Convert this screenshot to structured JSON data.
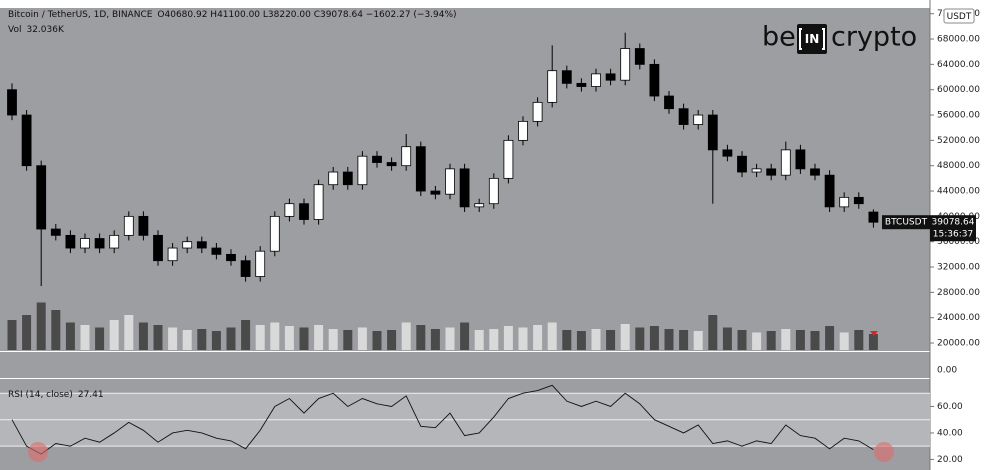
{
  "chart_data": [
    {
      "type": "candlestick",
      "title": "Bitcoin / TetherUS, 1D, BINANCE",
      "ohlc_text": "O40680.92 H41100.00 L38220.00 C39078.64 −1602.27 (−3.94%)",
      "symbol": "BTCUSDT",
      "countdown": "15:36:37",
      "currency": "USDT",
      "watermark": [
        "be",
        "IN",
        "crypto"
      ],
      "up_color": "#ffffff",
      "down_color": "#000000",
      "open": [
        60000,
        56000,
        48000,
        38000,
        37000,
        35000,
        36500,
        35000,
        37000,
        40000,
        37000,
        33000,
        35000,
        36000,
        35000,
        34000,
        33000,
        30500,
        34500,
        40000,
        42000,
        39500,
        45000,
        47000,
        45000,
        49500,
        48500,
        48000,
        51000,
        44000,
        43500,
        47500,
        41500,
        42000,
        46000,
        52000,
        55000,
        58000,
        63000,
        61000,
        60500,
        62500,
        61500,
        66500,
        64000,
        59000,
        57000,
        54500,
        56000,
        50500,
        49500,
        47000,
        47500,
        46500,
        50500,
        47500,
        46500,
        41500,
        43000,
        40680.92
      ],
      "high": [
        61000,
        56800,
        48800,
        38800,
        37800,
        37300,
        37300,
        37800,
        40800,
        40800,
        37800,
        35800,
        36800,
        36800,
        35800,
        34800,
        33800,
        35300,
        40800,
        42800,
        42800,
        45800,
        47800,
        47800,
        50300,
        50300,
        49300,
        53000,
        51800,
        44800,
        48300,
        48300,
        42800,
        46800,
        52800,
        55800,
        58800,
        67000,
        63800,
        61800,
        63300,
        63300,
        69000,
        67300,
        64800,
        59800,
        57800,
        56800,
        56800,
        51300,
        50300,
        48300,
        48300,
        51800,
        51300,
        48300,
        47300,
        43800,
        43800,
        41100
      ],
      "low": [
        55200,
        47200,
        29000,
        36200,
        34200,
        34200,
        34200,
        34200,
        36200,
        36200,
        32200,
        32200,
        34200,
        34200,
        33200,
        32200,
        29700,
        29700,
        33700,
        39200,
        38700,
        38700,
        44200,
        44200,
        44200,
        47700,
        47200,
        47200,
        43200,
        42700,
        42700,
        40700,
        40700,
        41200,
        45200,
        51200,
        54200,
        57200,
        60200,
        59700,
        59700,
        60700,
        60700,
        63200,
        58200,
        56200,
        53700,
        53700,
        42000,
        48700,
        46200,
        46200,
        45700,
        45700,
        46700,
        45700,
        40700,
        40700,
        41200,
        38220
      ],
      "close": [
        56000,
        48000,
        38000,
        37000,
        35000,
        36500,
        35000,
        37000,
        40000,
        37000,
        33000,
        35000,
        36000,
        35000,
        34000,
        33000,
        30500,
        34500,
        40000,
        42000,
        39500,
        45000,
        47000,
        45000,
        49500,
        48500,
        48000,
        51000,
        44000,
        43500,
        47500,
        41500,
        42000,
        46000,
        52000,
        55000,
        58000,
        63000,
        61000,
        60500,
        62500,
        61500,
        66500,
        64000,
        59000,
        57000,
        54500,
        56000,
        50500,
        49500,
        47000,
        47500,
        46500,
        50500,
        47500,
        46500,
        41500,
        43000,
        42000,
        39078.64
      ],
      "ylim": [
        18900,
        72900
      ],
      "yticks": [
        {
          "value": 20000,
          "label": "20000.00"
        },
        {
          "value": 24000,
          "label": "24000.00"
        },
        {
          "value": 28000,
          "label": "28000.00"
        },
        {
          "value": 32000,
          "label": "32000.00"
        },
        {
          "value": 36000,
          "label": "36000.00"
        },
        {
          "value": 40000,
          "label": "40000.00"
        },
        {
          "value": 44000,
          "label": "44000.00"
        },
        {
          "value": 48000,
          "label": "48000.00"
        },
        {
          "value": 52000,
          "label": "52000.00"
        },
        {
          "value": 56000,
          "label": "56000.00"
        },
        {
          "value": 60000,
          "label": "60000.00"
        },
        {
          "value": 64000,
          "label": "64000.00"
        },
        {
          "value": 68000,
          "label": "68000.00"
        },
        {
          "value": 72000,
          "label": "72000.00"
        }
      ],
      "grid": false
    },
    {
      "type": "volume",
      "title": "Vol",
      "up_color": "#d9d9d9",
      "down_color": "#4a4a4a",
      "values": [
        60,
        70,
        95,
        80,
        55,
        50,
        45,
        60,
        70,
        55,
        50,
        45,
        40,
        42,
        38,
        45,
        60,
        50,
        55,
        48,
        45,
        50,
        42,
        40,
        45,
        38,
        40,
        55,
        50,
        42,
        45,
        55,
        40,
        42,
        48,
        45,
        50,
        55,
        40,
        38,
        42,
        40,
        52,
        45,
        48,
        42,
        40,
        38,
        70,
        45,
        40,
        35,
        38,
        42,
        40,
        38,
        48,
        35,
        40,
        32.036
      ],
      "value_labels": [
        null,
        null,
        null,
        null,
        null,
        null,
        null,
        null,
        null,
        null,
        null,
        null,
        null,
        null,
        null,
        null,
        null,
        null,
        null,
        null,
        null,
        null,
        null,
        null,
        null,
        null,
        null,
        null,
        null,
        null,
        null,
        null,
        null,
        null,
        null,
        null,
        null,
        null,
        null,
        null,
        null,
        null,
        null,
        null,
        null,
        null,
        null,
        null,
        null,
        null,
        null,
        null,
        null,
        null,
        null,
        null,
        null,
        null,
        null,
        "32.036K"
      ],
      "ylim": [
        0,
        120
      ],
      "yticks": [
        {
          "value": 0,
          "label": "0.00"
        }
      ]
    },
    {
      "type": "line",
      "title": "RSI (14, close)",
      "color": "#111111",
      "values": [
        50,
        30,
        24,
        32,
        30,
        36,
        33,
        40,
        48,
        42,
        33,
        40,
        42,
        40,
        36,
        34,
        28,
        42,
        60,
        66,
        55,
        66,
        70,
        60,
        66,
        62,
        60,
        68,
        45,
        44,
        55,
        38,
        40,
        52,
        66,
        70,
        72,
        76,
        64,
        60,
        64,
        60,
        70,
        62,
        50,
        45,
        40,
        46,
        32,
        34,
        30,
        34,
        32,
        46,
        38,
        36,
        28,
        36,
        34,
        27.41
      ],
      "band": [
        30,
        70
      ],
      "levels": [
        30,
        50,
        70
      ],
      "ylim": [
        12,
        80
      ],
      "yticks": [
        {
          "value": 20,
          "label": "20.00"
        },
        {
          "value": 40,
          "label": "40.00"
        },
        {
          "value": 60,
          "label": "60.00"
        }
      ]
    }
  ]
}
